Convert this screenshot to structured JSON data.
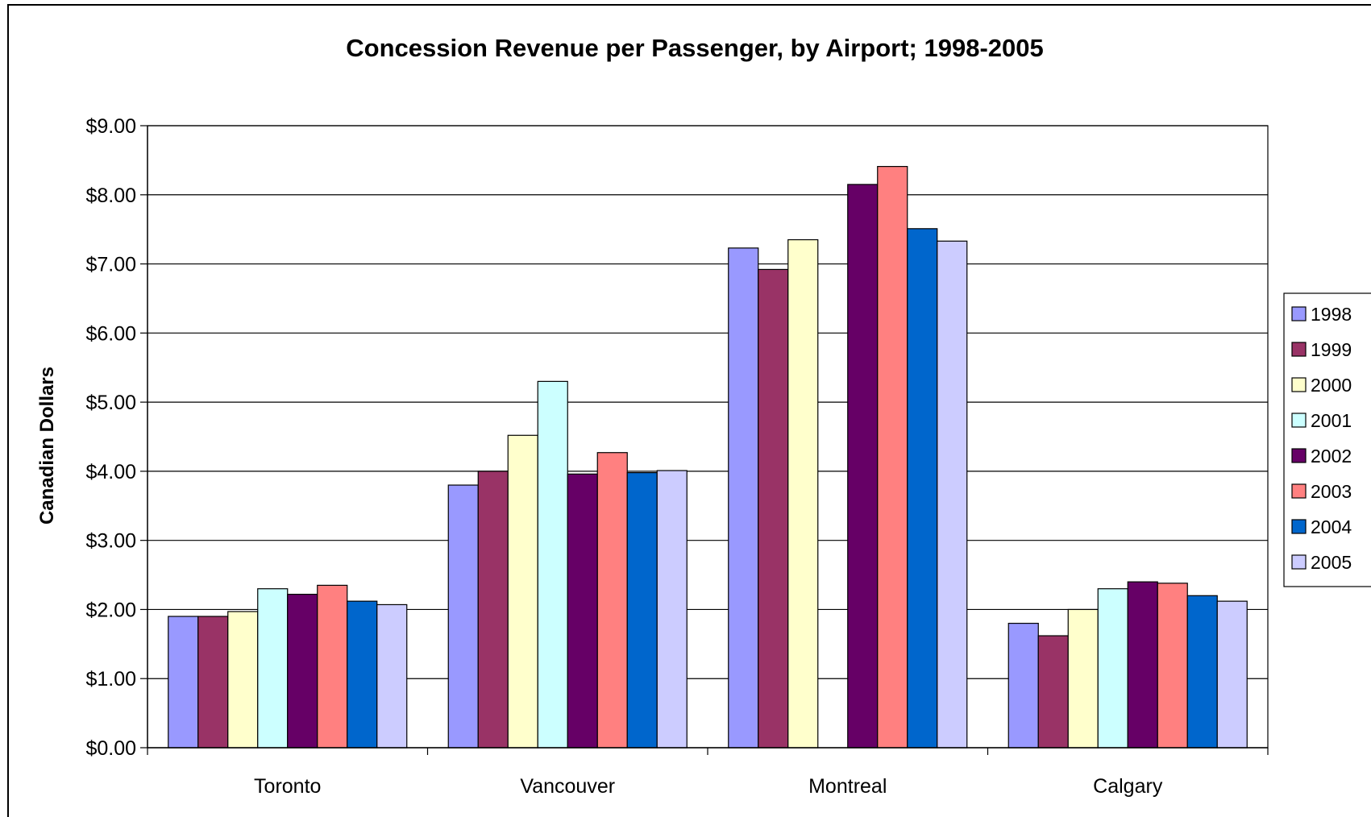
{
  "chart_data": {
    "type": "bar",
    "title": "Concession Revenue per Passenger, by Airport; 1998-2005",
    "xlabel": "",
    "ylabel": "Canadian Dollars",
    "ylim": [
      0,
      9
    ],
    "ytick_step": 1,
    "ytick_labels": [
      "$0.00",
      "$1.00",
      "$2.00",
      "$3.00",
      "$4.00",
      "$5.00",
      "$6.00",
      "$7.00",
      "$8.00",
      "$9.00"
    ],
    "grid": true,
    "legend_position": "right",
    "categories": [
      "Toronto",
      "Vancouver",
      "Montreal",
      "Calgary"
    ],
    "series": [
      {
        "name": "1998",
        "color": "#9999FF",
        "values": [
          1.9,
          3.8,
          7.23,
          1.8
        ]
      },
      {
        "name": "1999",
        "color": "#993366",
        "values": [
          1.9,
          4.0,
          6.92,
          1.62
        ]
      },
      {
        "name": "2000",
        "color": "#FFFFCC",
        "values": [
          1.97,
          4.52,
          7.35,
          2.0
        ]
      },
      {
        "name": "2001",
        "color": "#CCFFFF",
        "values": [
          2.3,
          5.3,
          null,
          2.3
        ]
      },
      {
        "name": "2002",
        "color": "#660066",
        "values": [
          2.22,
          3.96,
          8.15,
          2.4
        ]
      },
      {
        "name": "2003",
        "color": "#FF8080",
        "values": [
          2.35,
          4.27,
          8.41,
          2.38
        ]
      },
      {
        "name": "2004",
        "color": "#0066CC",
        "values": [
          2.12,
          3.98,
          7.51,
          2.2
        ]
      },
      {
        "name": "2005",
        "color": "#CCCCFF",
        "values": [
          2.07,
          4.01,
          7.33,
          2.12
        ]
      }
    ]
  }
}
